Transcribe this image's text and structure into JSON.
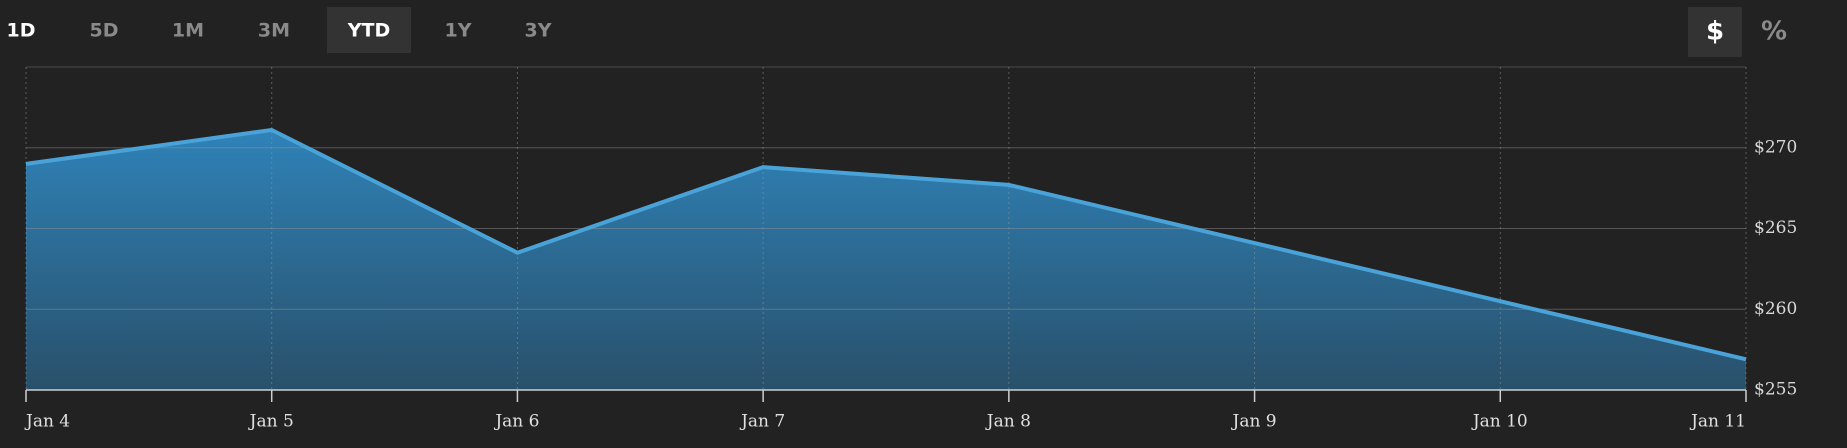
{
  "range_buttons": [
    "1D",
    "5D",
    "1M",
    "3M",
    "YTD",
    "1Y",
    "3Y"
  ],
  "active_range": "YTD",
  "unit_buttons": [
    "$",
    "%"
  ],
  "active_unit": "$",
  "chart_data": {
    "type": "area",
    "categories": [
      "Jan 4",
      "Jan 5",
      "Jan 6",
      "Jan 7",
      "Jan 8",
      "Jan 9",
      "Jan 10",
      "Jan 11"
    ],
    "values": [
      269.0,
      271.1,
      263.5,
      268.8,
      267.7,
      264.1,
      260.5,
      256.9
    ],
    "color": "#4aa3d8",
    "ylim": [
      255,
      275
    ],
    "yticks": [
      {
        "value": 255,
        "label": "$255"
      },
      {
        "value": 260,
        "label": "$260"
      },
      {
        "value": 265,
        "label": "$265"
      },
      {
        "value": 270,
        "label": "$270"
      }
    ],
    "grid": true
  }
}
